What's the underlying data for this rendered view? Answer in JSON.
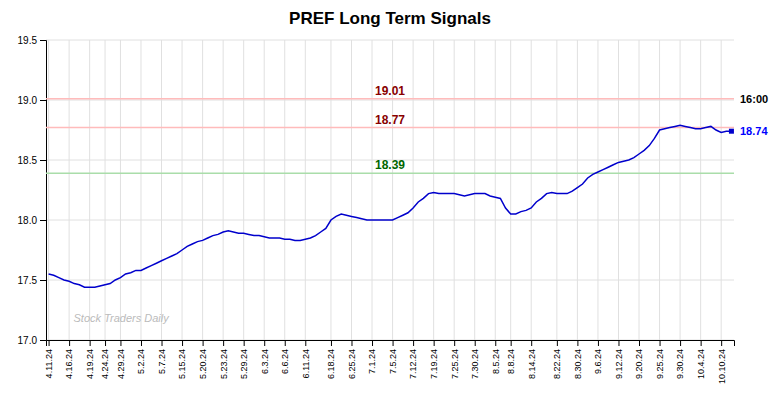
{
  "chart_data": {
    "type": "line",
    "title": "PREF Long Term Signals",
    "color": "#0000cc",
    "grid": true,
    "ylim": [
      17.0,
      19.5
    ],
    "yticks": [
      {
        "value": 17.0,
        "label": "17.0"
      },
      17.5,
      {
        "value": 18.0,
        "label": "18.0"
      },
      18.5,
      {
        "value": 19.0,
        "label": "19.0"
      },
      19.5
    ],
    "categories": [
      "4.11.24",
      null,
      null,
      null,
      "4.16.24",
      null,
      null,
      null,
      "4.19.24",
      null,
      null,
      "4.24.24",
      null,
      null,
      "4.29.24",
      null,
      null,
      null,
      "5.2.24",
      null,
      null,
      null,
      "5.7.24",
      null,
      null,
      null,
      "5.15.24",
      null,
      null,
      null,
      "5.20.24",
      null,
      null,
      null,
      "5.23.24",
      null,
      null,
      null,
      "5.29.24",
      null,
      null,
      null,
      "6.3.24",
      null,
      null,
      null,
      "6.6.24",
      null,
      null,
      null,
      "6.11.24",
      null,
      null,
      null,
      null,
      "6.18.24",
      null,
      null,
      null,
      "6.25.24",
      null,
      null,
      null,
      "7.1.24",
      null,
      null,
      null,
      "7.5.24",
      null,
      null,
      null,
      "7.12.24",
      null,
      null,
      null,
      "7.19.24",
      null,
      null,
      null,
      "7.25.24",
      null,
      null,
      null,
      "7.30.24",
      null,
      null,
      null,
      "8.5.24",
      null,
      null,
      "8.8.24",
      null,
      null,
      null,
      "8.14.24",
      null,
      null,
      null,
      null,
      "8.22.24",
      null,
      null,
      null,
      "8.30.24",
      null,
      null,
      null,
      "9.6.24",
      null,
      null,
      null,
      "9.12.24",
      null,
      null,
      null,
      "9.20.24",
      null,
      null,
      null,
      "9.25.24",
      null,
      null,
      null,
      "9.30.24",
      null,
      null,
      null,
      "10.4.24",
      null,
      null,
      null,
      "10.10.24",
      null,
      null
    ],
    "values": [
      17.55,
      17.54,
      17.52,
      17.5,
      17.49,
      17.47,
      17.46,
      17.44,
      17.44,
      17.44,
      17.45,
      17.46,
      17.47,
      17.5,
      17.52,
      17.55,
      17.56,
      17.58,
      17.58,
      17.6,
      17.62,
      17.64,
      17.66,
      17.68,
      17.7,
      17.72,
      17.75,
      17.78,
      17.8,
      17.82,
      17.83,
      17.85,
      17.87,
      17.88,
      17.9,
      17.91,
      17.9,
      17.89,
      17.89,
      17.88,
      17.87,
      17.87,
      17.86,
      17.85,
      17.85,
      17.85,
      17.84,
      17.84,
      17.83,
      17.83,
      17.84,
      17.85,
      17.87,
      17.9,
      17.93,
      18.0,
      18.03,
      18.05,
      18.04,
      18.03,
      18.02,
      18.01,
      18.0,
      18.0,
      18.0,
      18.0,
      18.0,
      18.0,
      18.02,
      18.04,
      18.06,
      18.1,
      18.15,
      18.18,
      18.22,
      18.23,
      18.22,
      18.22,
      18.22,
      18.22,
      18.21,
      18.2,
      18.21,
      18.22,
      18.22,
      18.22,
      18.2,
      18.19,
      18.18,
      18.1,
      18.05,
      18.05,
      18.07,
      18.08,
      18.1,
      18.15,
      18.18,
      18.22,
      18.23,
      18.22,
      18.22,
      18.22,
      18.24,
      18.27,
      18.3,
      18.35,
      18.38,
      18.4,
      18.42,
      18.44,
      18.46,
      18.48,
      18.49,
      18.5,
      18.52,
      18.55,
      18.58,
      18.62,
      18.68,
      18.75,
      18.76,
      18.77,
      18.78,
      18.79,
      18.78,
      18.77,
      18.76,
      18.76,
      18.77,
      18.78,
      18.75,
      18.73,
      18.74,
      18.74
    ],
    "reference_lines": [
      {
        "value": 19.01,
        "label": "19.01",
        "color": "#ffbbbb",
        "label_color": "#880000"
      },
      {
        "value": 18.77,
        "label": "18.77",
        "color": "#ffbbbb",
        "label_color": "#880000"
      },
      {
        "value": 18.39,
        "label": "18.39",
        "color": "#aaddaa",
        "label_color": "#006600"
      }
    ],
    "annotations": [
      {
        "text": "16:00",
        "y": 19.01
      },
      {
        "text": "18.74",
        "y": 18.74,
        "color": "#0000ff"
      }
    ],
    "watermark": "Stock Traders Daily"
  }
}
